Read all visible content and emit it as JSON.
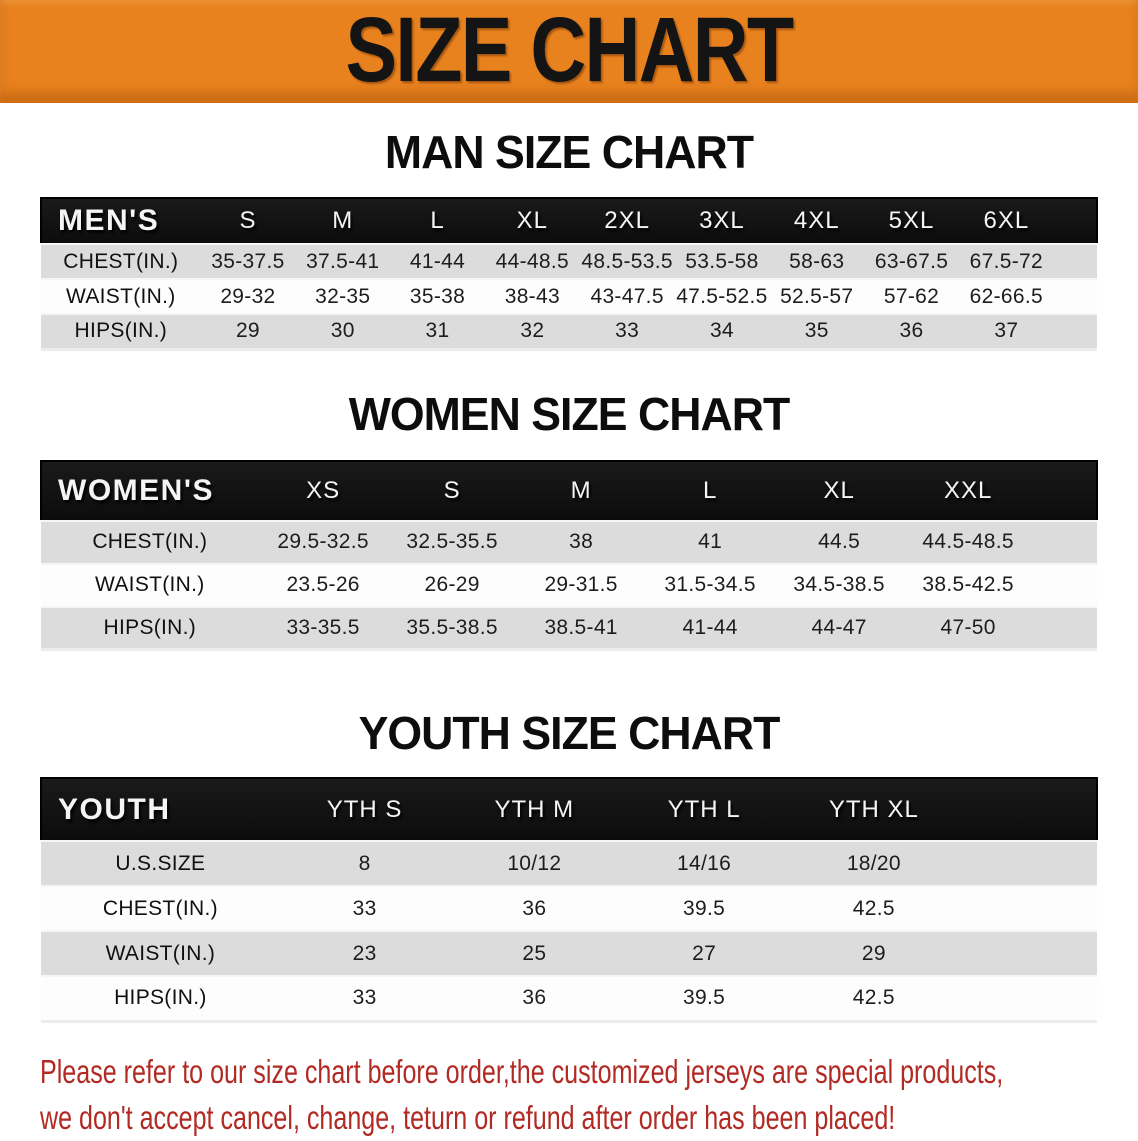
{
  "banner": {
    "title": "SIZE CHART"
  },
  "colors": {
    "banner_bg": "#e8821e",
    "table_header_bg": "#1a1a1a",
    "row_stripe": "#dcdcdc",
    "disclaimer_red": "#b22a24"
  },
  "sections": [
    {
      "title": "MAN SIZE CHART",
      "table": {
        "header_label": "MEN'S",
        "columns": [
          "S",
          "M",
          "L",
          "XL",
          "2XL",
          "3XL",
          "4XL",
          "5XL",
          "6XL"
        ],
        "rows": [
          {
            "label": "CHEST(IN.)",
            "values": [
              "35-37.5",
              "37.5-41",
              "41-44",
              "44-48.5",
              "48.5-53.5",
              "53.5-58",
              "58-63",
              "63-67.5",
              "67.5-72"
            ]
          },
          {
            "label": "WAIST(IN.)",
            "values": [
              "29-32",
              "32-35",
              "35-38",
              "38-43",
              "43-47.5",
              "47.5-52.5",
              "52.5-57",
              "57-62",
              "62-66.5"
            ]
          },
          {
            "label": "HIPS(IN.)",
            "values": [
              "29",
              "30",
              "31",
              "32",
              "33",
              "34",
              "35",
              "36",
              "37"
            ]
          }
        ]
      }
    },
    {
      "title": "WOMEN SIZE CHART",
      "table": {
        "header_label": "WOMEN'S",
        "columns": [
          "XS",
          "S",
          "M",
          "L",
          "XL",
          "XXL"
        ],
        "rows": [
          {
            "label": "CHEST(IN.)",
            "values": [
              "29.5-32.5",
              "32.5-35.5",
              "38",
              "41",
              "44.5",
              "44.5-48.5"
            ]
          },
          {
            "label": "WAIST(IN.)",
            "values": [
              "23.5-26",
              "26-29",
              "29-31.5",
              "31.5-34.5",
              "34.5-38.5",
              "38.5-42.5"
            ]
          },
          {
            "label": "HIPS(IN.)",
            "values": [
              "33-35.5",
              "35.5-38.5",
              "38.5-41",
              "41-44",
              "44-47",
              "47-50"
            ]
          }
        ]
      }
    },
    {
      "title": "YOUTH SIZE CHART",
      "table": {
        "header_label": "YOUTH",
        "columns": [
          "YTH S",
          "YTH M",
          "YTH L",
          "YTH XL"
        ],
        "rows": [
          {
            "label": "U.S.SIZE",
            "values": [
              "8",
              "10/12",
              "14/16",
              "18/20"
            ]
          },
          {
            "label": "CHEST(IN.)",
            "values": [
              "33",
              "36",
              "39.5",
              "42.5"
            ]
          },
          {
            "label": "WAIST(IN.)",
            "values": [
              "23",
              "25",
              "27",
              "29"
            ]
          },
          {
            "label": "HIPS(IN.)",
            "values": [
              "33",
              "36",
              "39.5",
              "42.5"
            ]
          }
        ]
      }
    }
  ],
  "disclaimer": {
    "line1": "Please refer to our size chart before order,the customized jerseys are special products,",
    "line2": "we don't accept cancel, change, teturn or refund after order has been placed!"
  }
}
